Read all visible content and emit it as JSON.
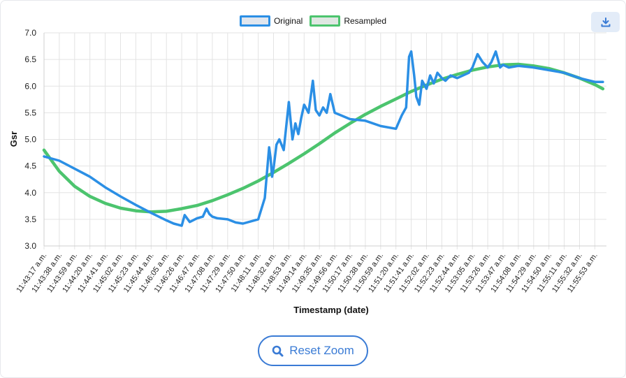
{
  "toolbar": {
    "download_icon": "download-icon"
  },
  "reset_button": {
    "label": "Reset Zoom",
    "icon": "search-icon"
  },
  "colors": {
    "original": "#2b8fe5",
    "resampled": "#4cc46e",
    "accent": "#3a7bd5"
  },
  "chart_data": {
    "type": "line",
    "xlabel": "Timestamp (date)",
    "ylabel": "Gsr",
    "ylim": [
      3.0,
      7.0
    ],
    "yticks": [
      "3.0",
      "3.5",
      "4.0",
      "4.5",
      "5.0",
      "5.5",
      "6.0",
      "6.5",
      "7.0"
    ],
    "grid": true,
    "legend_position": "top-center",
    "x_tick_labels": [
      "11:43:17 a.m.",
      "11:43:38 a.m.",
      "11:43:59 a.m.",
      "11:44:20 a.m.",
      "11:44:41 a.m.",
      "11:45:02 a.m.",
      "11:45:23 a.m.",
      "11:45:44 a.m.",
      "11:46:05 a.m.",
      "11:46:26 a.m.",
      "11:46:47 a.m.",
      "11:47:08 a.m.",
      "11:47:29 a.m.",
      "11:47:50 a.m.",
      "11:48:11 a.m.",
      "11:48:32 a.m.",
      "11:48:53 a.m.",
      "11:49:14 a.m.",
      "11:49:35 a.m.",
      "11:49:56 a.m.",
      "11:50:17 a.m.",
      "11:50:38 a.m.",
      "11:50:59 a.m.",
      "11:51:20 a.m.",
      "11:51:41 a.m.",
      "11:52:02 a.m.",
      "11:52:23 a.m.",
      "11:52:44 a.m.",
      "11:53:05 a.m.",
      "11:53:26 a.m.",
      "11:53:47 a.m.",
      "11:54:08 a.m.",
      "11:54:29 a.m.",
      "11:54:50 a.m.",
      "11:55:11 a.m.",
      "11:55:32 a.m.",
      "11:55:53 a.m."
    ],
    "series": [
      {
        "name": "Original",
        "color": "#2b8fe5",
        "x": [
          "11:43:17",
          "11:43:38",
          "11:43:59",
          "11:44:20",
          "11:44:41",
          "11:45:02",
          "11:45:23",
          "11:45:44",
          "11:46:05",
          "11:46:15",
          "11:46:26",
          "11:46:30",
          "11:46:37",
          "11:46:47",
          "11:46:55",
          "11:47:00",
          "11:47:04",
          "11:47:08",
          "11:47:15",
          "11:47:29",
          "11:47:40",
          "11:47:50",
          "11:48:11",
          "11:48:20",
          "11:48:26",
          "11:48:28",
          "11:48:30",
          "11:48:32",
          "11:48:36",
          "11:48:40",
          "11:48:46",
          "11:48:53",
          "11:48:58",
          "11:49:02",
          "11:49:06",
          "11:49:10",
          "11:49:14",
          "11:49:20",
          "11:49:26",
          "11:49:30",
          "11:49:35",
          "11:49:40",
          "11:49:45",
          "11:49:50",
          "11:49:56",
          "11:50:05",
          "11:50:17",
          "11:50:38",
          "11:50:59",
          "11:51:20",
          "11:51:28",
          "11:51:34",
          "11:51:38",
          "11:51:41",
          "11:51:45",
          "11:51:48",
          "11:51:52",
          "11:51:56",
          "11:52:02",
          "11:52:07",
          "11:52:12",
          "11:52:17",
          "11:52:23",
          "11:52:28",
          "11:52:35",
          "11:52:44",
          "11:53:00",
          "11:53:05",
          "11:53:12",
          "11:53:19",
          "11:53:26",
          "11:53:31",
          "11:53:37",
          "11:53:43",
          "11:53:47",
          "11:53:55",
          "11:54:08",
          "11:54:29",
          "11:54:50",
          "11:55:11",
          "11:55:32",
          "11:55:53",
          "11:56:04"
        ],
        "y": [
          4.68,
          4.6,
          4.45,
          4.3,
          4.1,
          3.93,
          3.77,
          3.62,
          3.48,
          3.42,
          3.38,
          3.58,
          3.45,
          3.52,
          3.55,
          3.7,
          3.6,
          3.55,
          3.52,
          3.5,
          3.44,
          3.42,
          3.5,
          3.9,
          4.85,
          4.65,
          4.3,
          4.45,
          4.9,
          5.0,
          4.8,
          5.7,
          5.0,
          5.3,
          5.1,
          5.4,
          5.65,
          5.5,
          6.1,
          5.55,
          5.45,
          5.6,
          5.5,
          5.85,
          5.5,
          5.45,
          5.38,
          5.35,
          5.25,
          5.2,
          5.45,
          5.6,
          6.55,
          6.65,
          6.2,
          5.8,
          5.65,
          6.1,
          5.95,
          6.2,
          6.05,
          6.25,
          6.15,
          6.1,
          6.2,
          6.15,
          6.25,
          6.35,
          6.6,
          6.45,
          6.35,
          6.45,
          6.65,
          6.35,
          6.4,
          6.35,
          6.38,
          6.35,
          6.3,
          6.25,
          6.15,
          6.08,
          6.08
        ]
      },
      {
        "name": "Resampled",
        "color": "#4cc46e",
        "x": [
          "11:43:17",
          "11:43:38",
          "11:43:59",
          "11:44:20",
          "11:44:41",
          "11:45:02",
          "11:45:23",
          "11:45:44",
          "11:46:05",
          "11:46:26",
          "11:46:47",
          "11:47:08",
          "11:47:29",
          "11:47:50",
          "11:48:11",
          "11:48:32",
          "11:48:53",
          "11:49:14",
          "11:49:35",
          "11:49:56",
          "11:50:17",
          "11:50:38",
          "11:50:59",
          "11:51:20",
          "11:51:41",
          "11:52:02",
          "11:52:23",
          "11:52:44",
          "11:53:05",
          "11:53:26",
          "11:53:47",
          "11:54:08",
          "11:54:29",
          "11:54:50",
          "11:55:11",
          "11:55:32",
          "11:55:53",
          "11:56:04"
        ],
        "y": [
          4.8,
          4.4,
          4.12,
          3.93,
          3.8,
          3.71,
          3.66,
          3.64,
          3.65,
          3.7,
          3.76,
          3.85,
          3.96,
          4.08,
          4.22,
          4.38,
          4.55,
          4.73,
          4.92,
          5.12,
          5.3,
          5.47,
          5.62,
          5.76,
          5.9,
          6.02,
          6.13,
          6.22,
          6.3,
          6.36,
          6.4,
          6.41,
          6.38,
          6.33,
          6.25,
          6.15,
          6.03,
          5.95
        ]
      }
    ]
  }
}
